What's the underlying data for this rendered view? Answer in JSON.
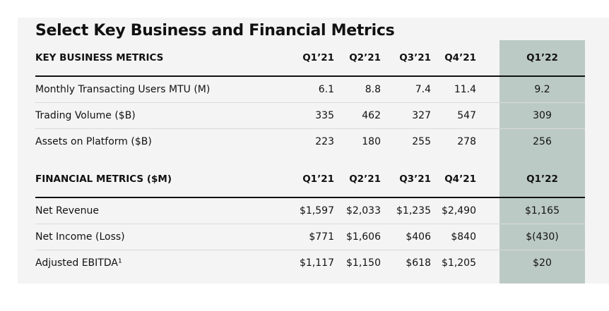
{
  "title": "Select Key Business and Financial Metrics",
  "business": {
    "heading": "KEY BUSINESS METRICS",
    "quarters": [
      "Q1’21",
      "Q2’21",
      "Q3’21",
      "Q4’21",
      "Q1’22"
    ],
    "rows": [
      {
        "label": "Monthly Transacting Users MTU (M)",
        "values": [
          "6.1",
          "8.8",
          "7.4",
          "11.4",
          "9.2"
        ]
      },
      {
        "label": "Trading Volume ($B)",
        "values": [
          "335",
          "462",
          "327",
          "547",
          "309"
        ]
      },
      {
        "label": "Assets on Platform ($B)",
        "values": [
          "223",
          "180",
          "255",
          "278",
          "256"
        ]
      }
    ]
  },
  "financial": {
    "heading": "FINANCIAL METRICS ($M)",
    "quarters": [
      "Q1’21",
      "Q2’21",
      "Q3’21",
      "Q4’21",
      "Q1’22"
    ],
    "rows": [
      {
        "label": "Net Revenue",
        "values": [
          "$1,597",
          "$2,033",
          "$1,235",
          "$2,490",
          "$1,165"
        ]
      },
      {
        "label": "Net Income (Loss)",
        "values": [
          "$771",
          "$1,606",
          "$406",
          "$840",
          "$(430)"
        ]
      },
      {
        "label": "Adjusted EBITDA¹",
        "values": [
          "$1,117",
          "$1,150",
          "$618",
          "$1,205",
          "$20"
        ]
      }
    ]
  },
  "colors": {
    "highlight_column": "#bccac6",
    "panel_background": "#f4f4f5",
    "text": "#111111"
  }
}
